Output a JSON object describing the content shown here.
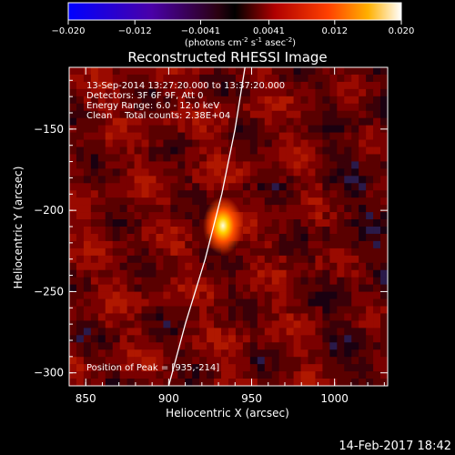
{
  "colorbar": {
    "min": -0.02,
    "max": 0.02,
    "tick_labels": [
      "-0.020",
      "-0.012",
      "-0.0041",
      "0.0041",
      "0.012",
      "0.020"
    ],
    "units_main": "(photons cm",
    "units_sup1": "-2",
    "units_mid1": " s",
    "units_sup2": "-1",
    "units_mid2": " asec",
    "units_sup3": "-2",
    "units_end": ")"
  },
  "title": "Reconstructed RHESSI Image",
  "info": {
    "time_range": "13-Sep-2014 13:27:20.000 to 13:37:20.000",
    "detectors": "Detectors: 3F 6F 9F, Att 0",
    "energy": "Energy Range: 6.0 - 12.0 keV",
    "clean": "Clean",
    "counts": "Total counts: 2.38E+04",
    "peak": "Position of Peak = [935,-214]"
  },
  "axes": {
    "xlabel": "Heliocentric X (arcsec)",
    "ylabel": "Heliocentric Y (arcsec)",
    "xticks": [
      "850",
      "900",
      "950",
      "1000"
    ],
    "yticks": [
      "-150",
      "-200",
      "-250",
      "-300"
    ]
  },
  "footer": {
    "date": "14-Feb-2017 18:42"
  },
  "chart_data": {
    "type": "heatmap",
    "title": "Reconstructed RHESSI Image",
    "xlabel": "Heliocentric X (arcsec)",
    "ylabel": "Heliocentric Y (arcsec)",
    "xlim": [
      840,
      1032
    ],
    "ylim": [
      -308,
      -112
    ],
    "peak": {
      "x": 935,
      "y": -214,
      "value": 0.02
    },
    "limb_curve": [
      [
        900,
        -308
      ],
      [
        910,
        -270
      ],
      [
        922,
        -230
      ],
      [
        932,
        -190
      ],
      [
        940,
        -150
      ],
      [
        946,
        -112
      ]
    ],
    "colormap": "RHESSI red-yellow (negative values blue/purple)"
  }
}
